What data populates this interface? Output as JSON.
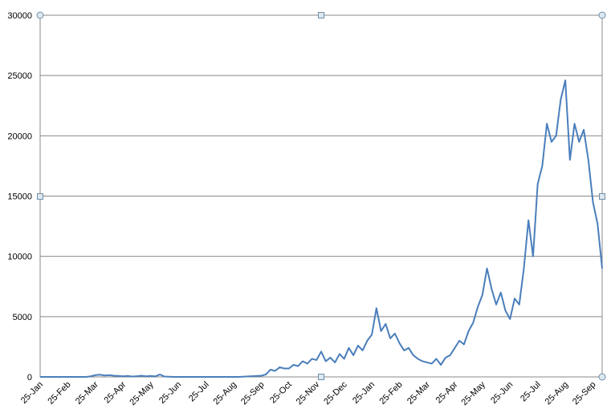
{
  "chart_data": {
    "type": "line",
    "categories": [
      "25-Jan",
      null,
      null,
      null,
      null,
      null,
      "25-Feb",
      null,
      null,
      null,
      null,
      null,
      "25-Mar",
      null,
      null,
      null,
      null,
      null,
      "25-Apr",
      null,
      null,
      null,
      null,
      null,
      "25-May",
      null,
      null,
      null,
      null,
      null,
      "25-Jun",
      null,
      null,
      null,
      null,
      null,
      "25-Jul",
      null,
      null,
      null,
      null,
      null,
      "25-Aug",
      null,
      null,
      null,
      null,
      null,
      "25-Sep",
      null,
      null,
      null,
      null,
      null,
      "25-Oct",
      null,
      null,
      null,
      null,
      null,
      "25-Nov",
      null,
      null,
      null,
      null,
      null,
      "25-Dec",
      null,
      null,
      null,
      null,
      null,
      "25-Jan",
      null,
      null,
      null,
      null,
      null,
      "25-Feb",
      null,
      null,
      null,
      null,
      null,
      "25-Mar",
      null,
      null,
      null,
      null,
      null,
      "25-Apr",
      null,
      null,
      null,
      null,
      null,
      "25-May",
      null,
      null,
      null,
      null,
      null,
      "25-Jun",
      null,
      null,
      null,
      null,
      null,
      "25-Jul",
      null,
      null,
      null,
      null,
      null,
      "25-Aug",
      null,
      null,
      null,
      null,
      null,
      "25-Sep",
      null,
      null
    ],
    "values": [
      0,
      0,
      0,
      0,
      0,
      0,
      0,
      0,
      0,
      0,
      0,
      50,
      150,
      180,
      120,
      150,
      100,
      80,
      50,
      80,
      30,
      60,
      100,
      50,
      80,
      50,
      200,
      30,
      20,
      0,
      0,
      0,
      0,
      0,
      0,
      0,
      0,
      0,
      0,
      0,
      0,
      0,
      0,
      0,
      20,
      40,
      60,
      80,
      100,
      200,
      600,
      500,
      800,
      700,
      700,
      1000,
      900,
      1300,
      1100,
      1500,
      1400,
      2100,
      1300,
      1600,
      1200,
      1900,
      1500,
      2400,
      1800,
      2600,
      2200,
      3000,
      3500,
      5700,
      3800,
      4400,
      3200,
      3600,
      2800,
      2200,
      2400,
      1800,
      1500,
      1300,
      1200,
      1100,
      1500,
      1000,
      1600,
      1800,
      2400,
      3000,
      2700,
      3800,
      4500,
      5800,
      6800,
      9000,
      7300,
      6000,
      7000,
      5500,
      4800,
      6500,
      6000,
      9000,
      13000,
      10000,
      16000,
      17500,
      21000,
      19500,
      20000,
      23000,
      24600,
      18000,
      21000,
      19500,
      20500,
      18000,
      14500,
      12700,
      9000
    ],
    "color": "#4a7ebb",
    "ylim": [
      0,
      30000
    ],
    "yticks": [
      0,
      5000,
      10000,
      15000,
      20000,
      25000,
      30000
    ],
    "grid": true
  }
}
